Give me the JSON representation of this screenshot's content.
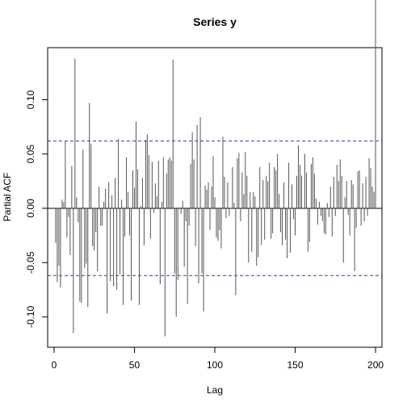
{
  "chart_data": {
    "type": "bar",
    "title": "Series  y",
    "xlabel": "Lag",
    "ylabel": "Partial ACF",
    "xlim": [
      -4,
      204
    ],
    "ylim": [
      -0.128,
      0.148
    ],
    "x_ticks": [
      0,
      50,
      100,
      150,
      200
    ],
    "y_ticks": [
      -0.1,
      -0.05,
      0.0,
      0.05,
      0.1
    ],
    "y_tick_labels": [
      "-0.10",
      "-0.05",
      "0.00",
      "0.05",
      "0.10"
    ],
    "confidence_bound": 0.062,
    "confidence_color": "#3333dd",
    "bar_color": "#555555",
    "grid": false,
    "lags": [
      1,
      2,
      3,
      4,
      5,
      6,
      7,
      8,
      9,
      10,
      11,
      12,
      13,
      14,
      15,
      16,
      17,
      18,
      19,
      20,
      21,
      22,
      23,
      24,
      25,
      26,
      27,
      28,
      29,
      30,
      31,
      32,
      33,
      34,
      35,
      36,
      37,
      38,
      39,
      40,
      41,
      42,
      43,
      44,
      45,
      46,
      47,
      48,
      49,
      50,
      51,
      52,
      53,
      54,
      55,
      56,
      57,
      58,
      59,
      60,
      61,
      62,
      63,
      64,
      65,
      66,
      67,
      68,
      69,
      70,
      71,
      72,
      73,
      74,
      75,
      76,
      77,
      78,
      79,
      80,
      81,
      82,
      83,
      84,
      85,
      86,
      87,
      88,
      89,
      90,
      91,
      92,
      93,
      94,
      95,
      96,
      97,
      98,
      99,
      100,
      101,
      102,
      103,
      104,
      105,
      106,
      107,
      108,
      109,
      110,
      111,
      112,
      113,
      114,
      115,
      116,
      117,
      118,
      119,
      120,
      121,
      122,
      123,
      124,
      125,
      126,
      127,
      128,
      129,
      130,
      131,
      132,
      133,
      134,
      135,
      136,
      137,
      138,
      139,
      140,
      141,
      142,
      143,
      144,
      145,
      146,
      147,
      148,
      149,
      150,
      151,
      152,
      153,
      154,
      155,
      156,
      157,
      158,
      159,
      160,
      161,
      162,
      163,
      164,
      165,
      166,
      167,
      168,
      169,
      170,
      171,
      172,
      173,
      174,
      175,
      176,
      177,
      178,
      179,
      180,
      181,
      182,
      183,
      184,
      185,
      186,
      187,
      188,
      189,
      190,
      191,
      192,
      193,
      194,
      195,
      196,
      197,
      198,
      199,
      200
    ],
    "values": [
      -0.032,
      -0.068,
      -0.053,
      -0.073,
      0.008,
      0.006,
      0.062,
      -0.027,
      -0.008,
      -0.043,
      0.039,
      -0.115,
      0.138,
      0.01,
      -0.013,
      -0.086,
      -0.087,
      0.054,
      -0.055,
      -0.051,
      -0.091,
      0.097,
      0.059,
      -0.035,
      -0.039,
      -0.022,
      -0.058,
      0.02,
      -0.016,
      -0.016,
      0.006,
      0.018,
      -0.097,
      0.024,
      -0.067,
      0.012,
      -0.072,
      0.028,
      -0.075,
      0.064,
      -0.061,
      0.008,
      -0.089,
      -0.026,
      0.047,
      0.015,
      -0.025,
      -0.085,
      0.035,
      0.019,
      0.08,
      0.036,
      -0.089,
      0.002,
      0.028,
      -0.034,
      0.063,
      0.068,
      0.049,
      -0.028,
      0.043,
      -0.004,
      0.023,
      0.011,
      0.044,
      -0.07,
      0.006,
      0.047,
      -0.118,
      0.032,
      0.045,
      0.047,
      0.044,
      0.137,
      -0.06,
      -0.1,
      -0.066,
      0.001,
      -0.005,
      0.007,
      -0.054,
      -0.012,
      -0.088,
      -0.016,
      0.041,
      0.07,
      0.045,
      -0.035,
      0.077,
      -0.069,
      0.084,
      -0.06,
      -0.095,
      0.021,
      0.017,
      0.024,
      -0.02,
      0.02,
      0.048,
      0.01,
      -0.027,
      -0.03,
      -0.02,
      -0.037,
      0.066,
      0.029,
      -0.009,
      0.024,
      -0.007,
      0.0,
      0.038,
      0.005,
      -0.08,
      0.046,
      0.051,
      -0.012,
      0.033,
      0.013,
      0.052,
      0.03,
      -0.05,
      0.015,
      -0.04,
      0.015,
      0.011,
      -0.053,
      -0.045,
      0.038,
      -0.034,
      0.026,
      -0.029,
      0.03,
      0.025,
      0.042,
      -0.028,
      -0.023,
      0.038,
      0.035,
      0.05,
      0.013,
      -0.022,
      -0.034,
      0.024,
      -0.029,
      -0.046,
      0.042,
      -0.041,
      0.022,
      -0.01,
      -0.025,
      0.03,
      0.058,
      0.04,
      0.03,
      0.0,
      0.05,
      0.033,
      -0.04,
      -0.031,
      0.041,
      0.047,
      0.032,
      0.009,
      -0.015,
      0.006,
      -0.007,
      -0.012,
      -0.023,
      -0.024,
      0.005,
      -0.008,
      0.02,
      -0.026,
      0.029,
      -0.007,
      0.04,
      0.025,
      0.045,
      0.03,
      -0.05,
      0.01,
      0.025,
      -0.006,
      -0.025,
      0.026,
      0.022,
      -0.058,
      -0.018,
      0.034,
      0.035,
      -0.016,
      0.023,
      -0.012,
      0.029,
      -0.007,
      0.046,
      0.037,
      0.02,
      0.015
    ]
  }
}
